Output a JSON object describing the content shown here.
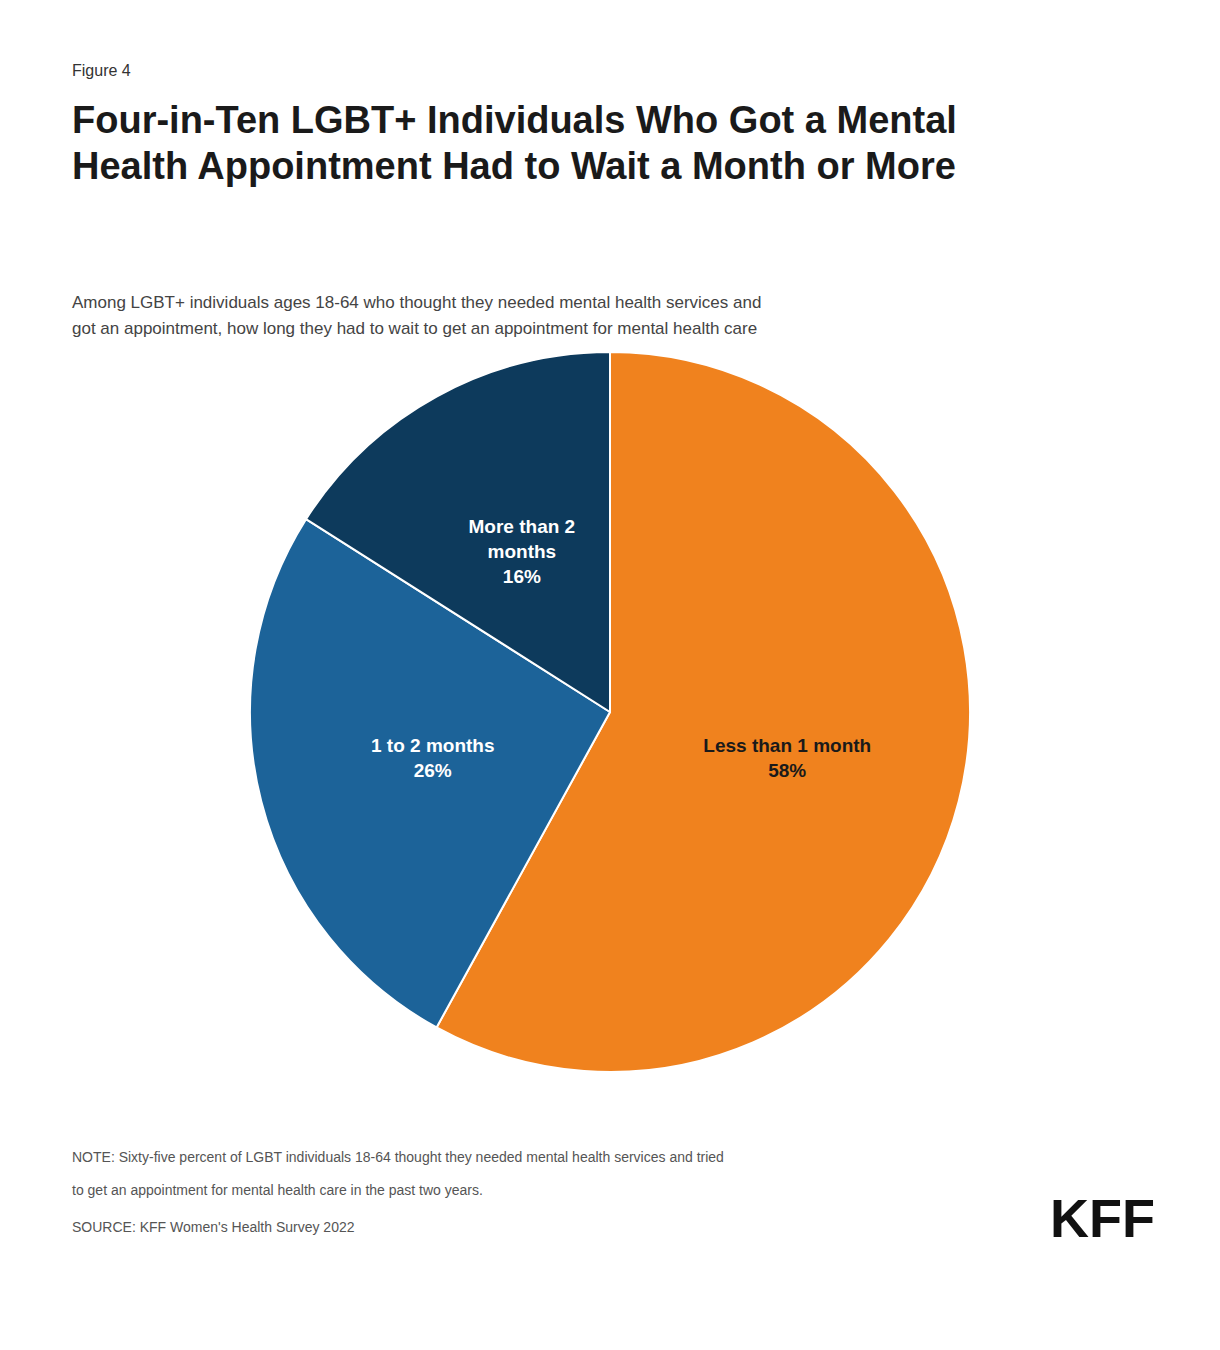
{
  "chart_data": {
    "type": "pie",
    "figure_label": "Figure 4",
    "title": "Four-in-Ten LGBT+ Individuals Who Got a Mental\nHealth Appointment Had to Wait a Month or More",
    "subtitle": "Among LGBT+ individuals ages 18-64 who thought they needed mental health services and\ngot an appointment, how long they had to wait to get an appointment for mental health care",
    "categories": [
      "Less than 1 month",
      "1 to 2 months",
      "More than 2\nmonths"
    ],
    "values": [
      58,
      26,
      16
    ],
    "value_labels": [
      "58%",
      "26%",
      "16%"
    ],
    "colors": [
      "#F0821E",
      "#1C6399",
      "#0D3A5C"
    ],
    "data_labels": true,
    "legend": false,
    "notes": [
      "NOTE: Sixty-five percent of LGBT individuals 18-64 thought they needed mental health services and tried",
      "to get an appointment for mental health care in the past two years."
    ],
    "source": "SOURCE: KFF Women's Health Survey 2022",
    "logo": "KFF"
  }
}
